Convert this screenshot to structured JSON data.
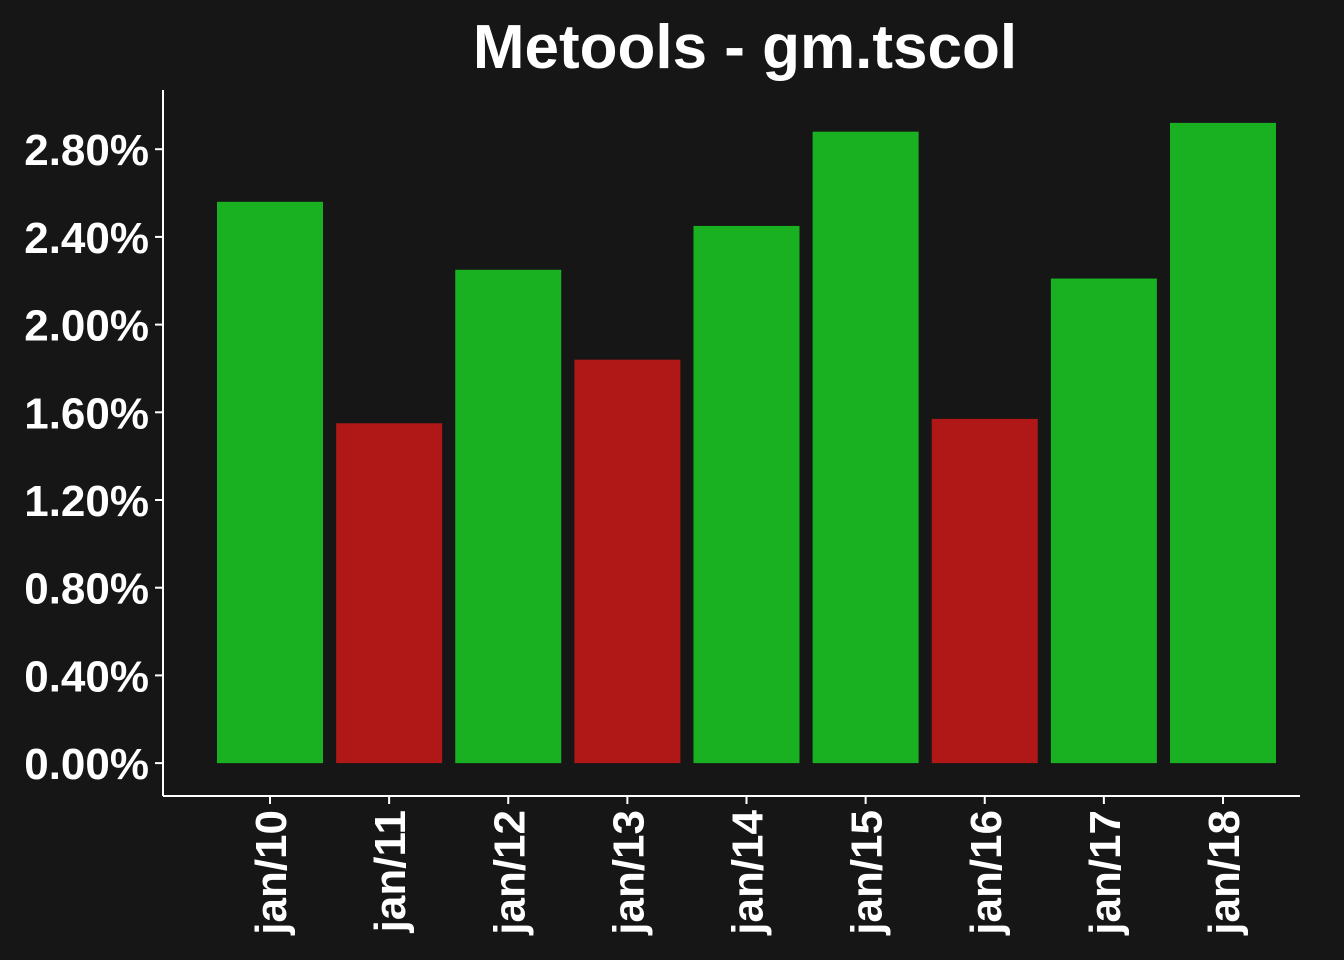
{
  "chart_data": {
    "type": "bar",
    "title": "Metools - gm.tscol",
    "xlabel": "",
    "ylabel": "",
    "categories": [
      "jan/10",
      "jan/11",
      "jan/12",
      "jan/13",
      "jan/14",
      "jan/15",
      "jan/16",
      "jan/17",
      "jan/18"
    ],
    "values": [
      2.56,
      1.55,
      2.25,
      1.84,
      2.45,
      2.88,
      1.57,
      2.21,
      2.92
    ],
    "value_unit": "%",
    "yticks": [
      "0.00%",
      "0.40%",
      "0.80%",
      "1.20%",
      "1.60%",
      "2.00%",
      "2.40%",
      "2.80%"
    ],
    "ylim": [
      -0.15,
      3.07
    ],
    "grid": false,
    "legend": "none",
    "colors": {
      "background": "#161616",
      "up": "#19b122",
      "down": "#b01818",
      "axis": "#ffffff",
      "text": "#ffffff"
    },
    "bar_colors": [
      "up",
      "down",
      "up",
      "down",
      "up",
      "up",
      "down",
      "up",
      "up"
    ]
  }
}
